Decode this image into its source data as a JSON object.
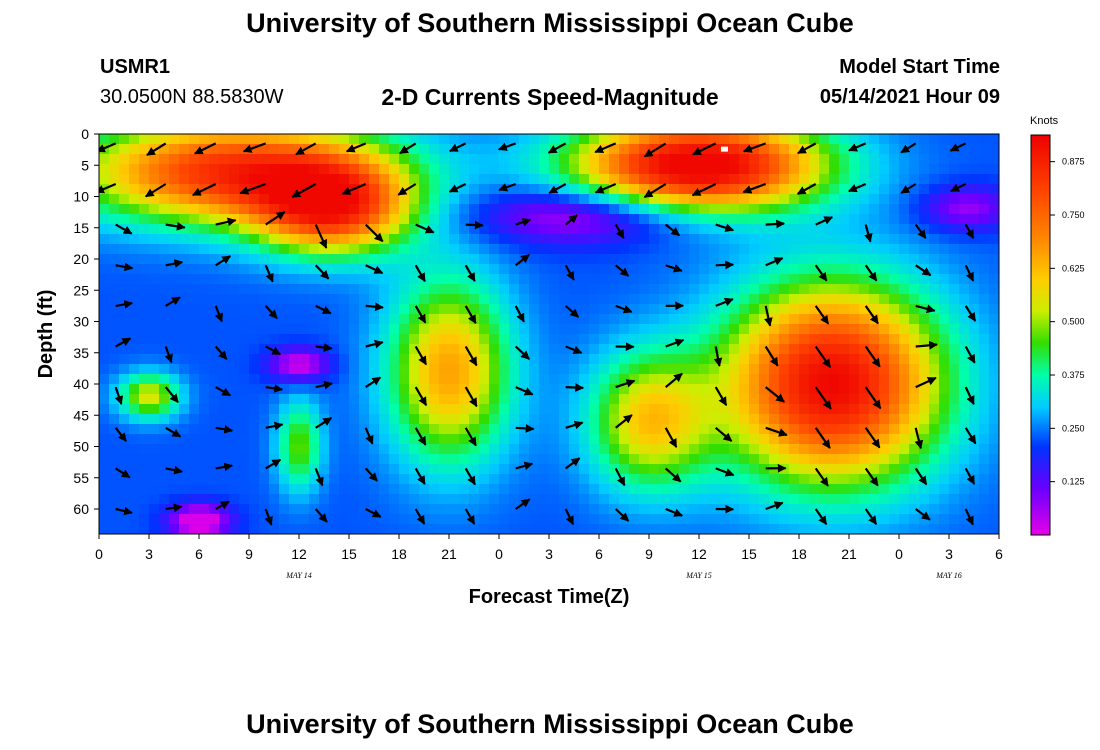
{
  "header": {
    "title": "University of Southern Mississippi Ocean Cube",
    "station_id": "USMR1",
    "coords": "30.0500N  88.5830W",
    "plot_title": "2-D Currents Speed-Magnitude",
    "model_start_label": "Model Start Time",
    "model_start_value": "05/14/2021 Hour 09"
  },
  "footer": {
    "title": "University of Southern Mississippi Ocean Cube"
  },
  "chart_data": {
    "type": "heatmap",
    "xlabel": "Forecast Time(Z)",
    "ylabel": "Depth (ft)",
    "x_ticks": [
      "0",
      "3",
      "6",
      "9",
      "12",
      "15",
      "18",
      "21",
      "0",
      "3",
      "6",
      "9",
      "12",
      "15",
      "18",
      "21",
      "0",
      "3",
      "6"
    ],
    "date_labels": [
      {
        "text": "MAY 14",
        "hour": 12
      },
      {
        "text": "MAY 15",
        "hour": 36
      },
      {
        "text": "MAY 16",
        "hour": 51
      }
    ],
    "y_ticks": [
      0,
      5,
      10,
      15,
      20,
      25,
      30,
      35,
      40,
      45,
      50,
      55,
      60
    ],
    "xlim": [
      0,
      54
    ],
    "ylim": [
      0,
      64
    ],
    "colorbar": {
      "unit": "Knots",
      "ticks": [
        "0.875",
        "0.750",
        "0.625",
        "0.500",
        "0.375",
        "0.250",
        "0.125"
      ],
      "tick_values": [
        0.875,
        0.75,
        0.625,
        0.5,
        0.375,
        0.25,
        0.125
      ],
      "range": [
        0,
        0.9375
      ]
    },
    "speed_regions": [
      {
        "hour": 8,
        "depth": 6,
        "radius_h": 10,
        "radius_d": 9,
        "value": 0.62
      },
      {
        "hour": 14,
        "depth": 12,
        "radius_h": 5,
        "radius_d": 8,
        "value": 0.55
      },
      {
        "hour": 36,
        "depth": 5,
        "radius_h": 8,
        "radius_d": 8,
        "value": 0.78
      },
      {
        "hour": 44,
        "depth": 40,
        "radius_h": 7,
        "radius_d": 17,
        "value": 0.72
      },
      {
        "hour": 21,
        "depth": 38,
        "radius_h": 4,
        "radius_d": 16,
        "value": 0.42
      },
      {
        "hour": 33,
        "depth": 46,
        "radius_h": 4,
        "radius_d": 12,
        "value": 0.36
      },
      {
        "hour": 3,
        "depth": 42,
        "radius_h": 2,
        "radius_d": 4,
        "value": 0.32
      },
      {
        "hour": 12,
        "depth": 50,
        "radius_h": 1.5,
        "radius_d": 8,
        "value": 0.25
      },
      {
        "hour": 6,
        "depth": 62,
        "radius_h": 2,
        "radius_d": 3,
        "value": -0.25
      },
      {
        "hour": 12,
        "depth": 37,
        "radius_h": 2,
        "radius_d": 3,
        "value": -0.2
      },
      {
        "hour": 29,
        "depth": 13,
        "radius_h": 7,
        "radius_d": 5,
        "value": -0.2
      },
      {
        "hour": 52,
        "depth": 12,
        "radius_h": 3,
        "radius_d": 4,
        "value": -0.15
      }
    ],
    "background_speed": 0.2,
    "vectors_sample": [
      {
        "hour": 1,
        "depth": 1,
        "dir_deg": 200
      },
      {
        "hour": 20,
        "depth": 35,
        "dir_deg": -60
      },
      {
        "hour": 44,
        "depth": 40,
        "dir_deg": -50
      },
      {
        "hour": 50,
        "depth": 20,
        "dir_deg": -70
      }
    ]
  }
}
